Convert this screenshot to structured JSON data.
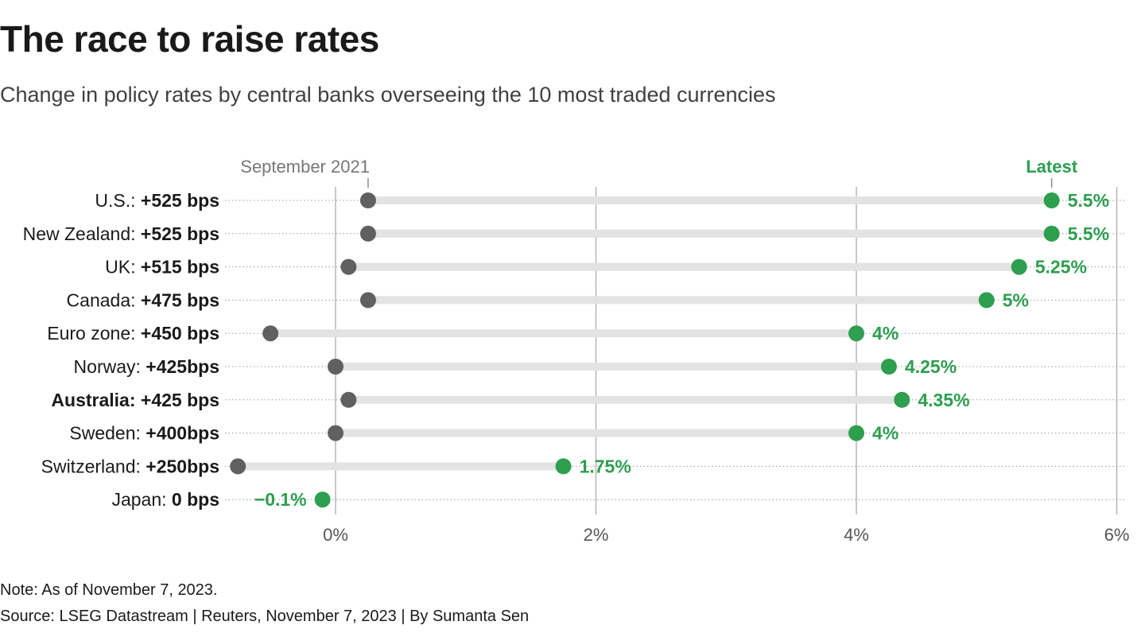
{
  "title": "The race to raise rates",
  "subtitle": "Change in policy rates by central banks overseeing the 10 most traded currencies",
  "note": "Note: As of November 7, 2023.",
  "source": "Source: LSEG Datastream | Reuters, November 7, 2023 | By Sumanta Sen",
  "colors": {
    "start_dot": "#606060",
    "latest_dot": "#2e9e4f",
    "latest_label": "#2e9e4f",
    "range_bar": "#e3e3e3",
    "grid": "#b5b5b5",
    "row_rule": "#9a9a9a",
    "text": "#1a1a1a"
  },
  "chart_data": {
    "type": "dumbbell",
    "title": "The race to raise rates",
    "subtitle": "Change in policy rates by central banks overseeing the 10 most traded currencies",
    "start_label": "September 2021",
    "end_label": "Latest",
    "unit": "%",
    "xlim": [
      -0.85,
      6.05
    ],
    "xticks": [
      {
        "value": 0,
        "label": "0%"
      },
      {
        "value": 2,
        "label": "2%"
      },
      {
        "value": 4,
        "label": "4%"
      },
      {
        "value": 6,
        "label": "6%"
      }
    ],
    "grid": true,
    "rows": [
      {
        "country": "U.S.:",
        "change": "+525 bps",
        "bold_country": false,
        "start": 0.25,
        "latest": 5.5,
        "latest_label": "5.5%"
      },
      {
        "country": "New Zealand:",
        "change": "+525 bps",
        "bold_country": false,
        "start": 0.25,
        "latest": 5.5,
        "latest_label": "5.5%"
      },
      {
        "country": "UK:",
        "change": "+515 bps",
        "bold_country": false,
        "start": 0.1,
        "latest": 5.25,
        "latest_label": "5.25%"
      },
      {
        "country": "Canada:",
        "change": "+475 bps",
        "bold_country": false,
        "start": 0.25,
        "latest": 5.0,
        "latest_label": "5%"
      },
      {
        "country": "Euro zone:",
        "change": "+450 bps",
        "bold_country": false,
        "start": -0.5,
        "latest": 4.0,
        "latest_label": "4%"
      },
      {
        "country": "Norway:",
        "change": "+425bps",
        "bold_country": false,
        "start": 0.0,
        "latest": 4.25,
        "latest_label": "4.25%"
      },
      {
        "country": "Australia:",
        "change": "+425 bps",
        "bold_country": true,
        "start": 0.1,
        "latest": 4.35,
        "latest_label": "4.35%"
      },
      {
        "country": "Sweden:",
        "change": "+400bps",
        "bold_country": false,
        "start": 0.0,
        "latest": 4.0,
        "latest_label": "4%"
      },
      {
        "country": "Switzerland:",
        "change": "+250bps",
        "bold_country": false,
        "start": -0.75,
        "latest": 1.75,
        "latest_label": "1.75%"
      },
      {
        "country": "Japan:",
        "change": "0 bps",
        "bold_country": false,
        "start": -0.1,
        "latest": -0.1,
        "latest_label": "−0.1%"
      }
    ]
  }
}
